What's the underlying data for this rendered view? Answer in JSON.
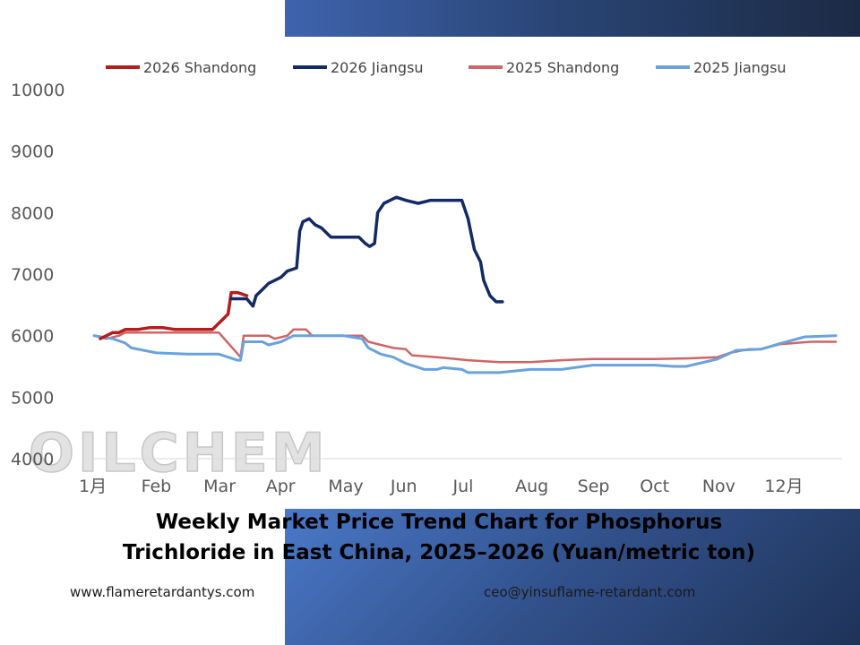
{
  "title_lines": [
    "Weekly Market Price Trend Chart for Phosphorus",
    "Trichloride in East China, 2025–2026 (Yuan/metric ton)"
  ],
  "watermark": "OILCHEM",
  "footer": {
    "website": "www.flameretardantys.com",
    "email": "ceo@yinsuflame-retardant.com"
  },
  "colors": {
    "shandong_2026": "#b51c1c",
    "jiangsu_2026": "#122b66",
    "shandong_2025": "#cf6566",
    "jiangsu_2025": "#69a2dd",
    "axis_text": "#595959",
    "banner": "#2a4677"
  },
  "chart_data": {
    "type": "line",
    "title": "",
    "xlabel": "",
    "ylabel": "",
    "ylim": [
      4000,
      10000
    ],
    "yticks": [
      10000,
      9000,
      8000,
      7000,
      6000,
      5000,
      4000
    ],
    "xlim": [
      1,
      13.0
    ],
    "xticks": [
      {
        "x": 1.0,
        "label": "1月"
      },
      {
        "x": 2.0,
        "label": "Feb"
      },
      {
        "x": 3.0,
        "label": "Mar"
      },
      {
        "x": 4.0,
        "label": "Apr"
      },
      {
        "x": 5.0,
        "label": "May"
      },
      {
        "x": 6.0,
        "label": "Jun"
      },
      {
        "x": 7.0,
        "label": "Jul"
      },
      {
        "x": 8.0,
        "label": "Aug"
      },
      {
        "x": 9.0,
        "label": "Sep"
      },
      {
        "x": 10.0,
        "label": "Oct"
      },
      {
        "x": 11.0,
        "label": "Nov"
      },
      {
        "x": 12.0,
        "label": "12月"
      }
    ],
    "grid": false,
    "legend": "top",
    "series": [
      {
        "name": "2026 Shandong",
        "color": "#b51c1c",
        "width": 3.5,
        "x": [
          1.1,
          1.2,
          1.3,
          1.4,
          1.5,
          1.7,
          1.9,
          2.1,
          2.3,
          2.5,
          2.7,
          2.9,
          3.0,
          3.1,
          3.15,
          3.2,
          3.3,
          3.45
        ],
        "y": [
          5950,
          6000,
          6050,
          6050,
          6100,
          6100,
          6130,
          6130,
          6100,
          6100,
          6100,
          6100,
          6200,
          6300,
          6350,
          6700,
          6700,
          6650
        ]
      },
      {
        "name": "2026 Jiangsu",
        "color": "#122b66",
        "width": 3.5,
        "x": [
          3.2,
          3.3,
          3.45,
          3.55,
          3.6,
          3.7,
          3.8,
          3.9,
          4.0,
          4.1,
          4.25,
          4.3,
          4.35,
          4.45,
          4.55,
          4.65,
          4.75,
          4.8,
          4.9,
          5.0,
          5.1,
          5.25,
          5.35,
          5.42,
          5.5,
          5.55,
          5.65,
          5.75,
          5.85,
          6.0,
          6.2,
          6.4,
          6.6,
          6.9,
          7.0,
          7.1,
          7.2,
          7.25,
          7.35,
          7.45,
          7.55
        ],
        "y": [
          6600,
          6600,
          6600,
          6480,
          6650,
          6750,
          6850,
          6900,
          6950,
          7050,
          7100,
          7700,
          7850,
          7900,
          7800,
          7750,
          7650,
          7600,
          7600,
          7600,
          7600,
          7600,
          7500,
          7450,
          7500,
          8000,
          8150,
          8200,
          8250,
          8200,
          8150,
          8200,
          8200,
          8200,
          7900,
          7400,
          7200,
          6900,
          6650,
          6550,
          6550
        ]
      },
      {
        "name": "2025 Shandong",
        "color": "#cf6566",
        "width": 2.5,
        "x": [
          1.0,
          1.2,
          1.4,
          1.5,
          1.8,
          2.0,
          2.5,
          3.0,
          3.35,
          3.4,
          3.8,
          3.9,
          4.1,
          4.2,
          4.4,
          4.5,
          5.0,
          5.3,
          5.4,
          5.6,
          5.8,
          6.0,
          6.1,
          6.5,
          7.0,
          7.5,
          8.0,
          8.5,
          9.0,
          9.5,
          10.0,
          10.5,
          11.0,
          11.2,
          11.5,
          11.7,
          12.0,
          12.5,
          12.9
        ],
        "y": [
          6000,
          5950,
          6000,
          6050,
          6050,
          6050,
          6050,
          6050,
          5650,
          6000,
          6000,
          5950,
          6000,
          6100,
          6100,
          6000,
          6000,
          6000,
          5900,
          5850,
          5800,
          5780,
          5680,
          5650,
          5600,
          5570,
          5570,
          5600,
          5620,
          5620,
          5620,
          5630,
          5650,
          5720,
          5780,
          5780,
          5860,
          5900,
          5900
        ]
      },
      {
        "name": "2025 Jiangsu",
        "color": "#69a2dd",
        "width": 3.0,
        "x": [
          1.0,
          1.3,
          1.5,
          1.6,
          2.0,
          2.5,
          3.0,
          3.3,
          3.35,
          3.4,
          3.7,
          3.8,
          4.0,
          4.2,
          4.5,
          5.0,
          5.3,
          5.4,
          5.6,
          5.8,
          6.0,
          6.3,
          6.5,
          6.6,
          6.9,
          7.0,
          7.5,
          8.0,
          8.5,
          9.0,
          9.5,
          10.0,
          10.3,
          10.5,
          11.0,
          11.3,
          11.7,
          12.0,
          12.4,
          12.9
        ],
        "y": [
          6000,
          5950,
          5880,
          5800,
          5720,
          5700,
          5700,
          5600,
          5600,
          5900,
          5900,
          5850,
          5900,
          6000,
          6000,
          6000,
          5950,
          5800,
          5700,
          5650,
          5550,
          5450,
          5450,
          5480,
          5450,
          5400,
          5400,
          5450,
          5450,
          5520,
          5520,
          5520,
          5500,
          5500,
          5620,
          5760,
          5780,
          5870,
          5980,
          6000
        ]
      }
    ]
  }
}
